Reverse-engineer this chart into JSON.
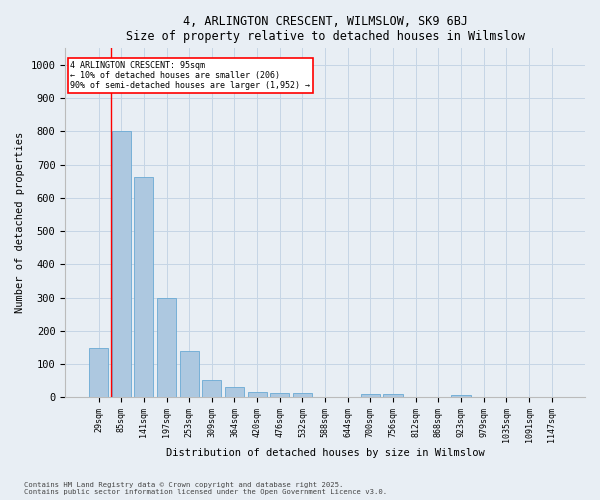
{
  "title": "4, ARLINGTON CRESCENT, WILMSLOW, SK9 6BJ",
  "subtitle": "Size of property relative to detached houses in Wilmslow",
  "xlabel": "Distribution of detached houses by size in Wilmslow",
  "ylabel": "Number of detached properties",
  "bar_labels": [
    "29sqm",
    "85sqm",
    "141sqm",
    "197sqm",
    "253sqm",
    "309sqm",
    "364sqm",
    "420sqm",
    "476sqm",
    "532sqm",
    "588sqm",
    "644sqm",
    "700sqm",
    "756sqm",
    "812sqm",
    "868sqm",
    "923sqm",
    "979sqm",
    "1035sqm",
    "1091sqm",
    "1147sqm"
  ],
  "bar_values": [
    148,
    800,
    663,
    300,
    138,
    52,
    30,
    16,
    14,
    12,
    0,
    0,
    9,
    9,
    0,
    0,
    7,
    0,
    0,
    0,
    0
  ],
  "bar_color": "#adc8e0",
  "bar_edge_color": "#6aaad4",
  "ylim": [
    0,
    1050
  ],
  "yticks": [
    0,
    100,
    200,
    300,
    400,
    500,
    600,
    700,
    800,
    900,
    1000
  ],
  "annotation_line1": "4 ARLINGTON CRESCENT: 95sqm",
  "annotation_line2": "← 10% of detached houses are smaller (206)",
  "annotation_line3": "90% of semi-detached houses are larger (1,952) →",
  "bg_color": "#e8eef4",
  "grid_color": "#c5d5e5",
  "footer1": "Contains HM Land Registry data © Crown copyright and database right 2025.",
  "footer2": "Contains public sector information licensed under the Open Government Licence v3.0."
}
